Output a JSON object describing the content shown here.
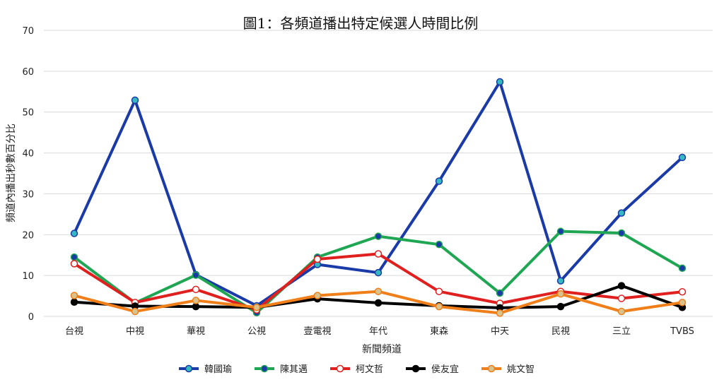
{
  "chart_data": {
    "type": "line",
    "title": "圖1：各頻道播出特定候選人時間比例",
    "xlabel": "新聞頻道",
    "ylabel": "頻道內播出秒數百分比",
    "ylim": [
      0,
      70
    ],
    "yticks": [
      0,
      10,
      20,
      30,
      40,
      50,
      60,
      70
    ],
    "grid": true,
    "legend_position": "bottom",
    "categories": [
      "台視",
      "中視",
      "華視",
      "公視",
      "壹電視",
      "年代",
      "東森",
      "中天",
      "民視",
      "三立",
      "TVBS"
    ],
    "series": [
      {
        "name": "韓國瑜",
        "color": "#1a3aa8",
        "marker_fill": "#36b8c0",
        "values": [
          20.3,
          52.9,
          10.2,
          2.6,
          12.7,
          10.7,
          33.1,
          57.4,
          8.7,
          25.3,
          38.9
        ]
      },
      {
        "name": "陳其邁",
        "color": "#1fa652",
        "marker_fill": "#1a3aa8",
        "values": [
          14.5,
          3.3,
          10.1,
          0.9,
          14.5,
          19.6,
          17.6,
          5.7,
          20.8,
          20.4,
          11.8
        ]
      },
      {
        "name": "柯文哲",
        "color": "#e01f1f",
        "marker_fill": "#ffffff",
        "values": [
          12.9,
          3.4,
          6.6,
          1.6,
          14.0,
          15.3,
          6.1,
          3.2,
          6.1,
          4.4,
          6.0
        ]
      },
      {
        "name": "侯友宜",
        "color": "#000000",
        "marker_fill": "#000000",
        "values": [
          3.5,
          2.5,
          2.4,
          2.2,
          4.3,
          3.3,
          2.6,
          2.1,
          2.4,
          7.5,
          2.2
        ]
      },
      {
        "name": "姚文智",
        "color": "#f07f1a",
        "marker_fill": "#d9c38c",
        "values": [
          5.1,
          1.2,
          3.9,
          2.2,
          5.1,
          6.1,
          2.4,
          0.8,
          5.5,
          1.2,
          3.4
        ]
      }
    ]
  }
}
